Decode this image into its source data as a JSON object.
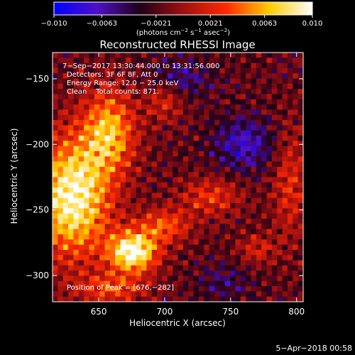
{
  "chart_data": {
    "type": "heatmap",
    "title": "Reconstructed RHESSI Image",
    "xlabel": "Heliocentric X (arcsec)",
    "ylabel": "Heliocentric Y (arcsec)",
    "xlim": [
      615,
      805
    ],
    "ylim": [
      -320,
      -130
    ],
    "x_ticks": [
      650,
      700,
      750,
      800
    ],
    "x_tick_labels": [
      "650",
      "700",
      "750",
      "800"
    ],
    "y_ticks": [
      -150,
      -200,
      -250,
      -300
    ],
    "y_tick_labels": [
      "−150",
      "−200",
      "−250",
      "−300"
    ],
    "colorbar": {
      "min": -0.01,
      "max": 0.01,
      "ticks": [
        -0.01,
        -0.0063,
        -0.0021,
        0.0021,
        0.0063,
        0.01
      ],
      "tick_labels": [
        "−0.010",
        "−0.0063",
        "−0.0021",
        "0.0021",
        "0.0063",
        "0.010"
      ],
      "unit_label_parts": [
        "(photons cm",
        "−2",
        " s",
        "−1",
        " asec",
        "−2",
        ")"
      ],
      "colors": [
        "#0000ff",
        "#5010c8",
        "#200018",
        "#a01010",
        "#ff2a00",
        "#ffcc00",
        "#ffffff"
      ]
    },
    "annotations": [
      "7−Sep−2017 13:30:44.000 to 13:31:56.000",
      "Detectors: 3F 6F 8F, Att 0",
      "Energy Range: 12.0 − 25.0 keV",
      "Clean    Total counts: 871."
    ],
    "peak_label": "Position of Peak = [676,−282]",
    "peak": [
      676,
      -282
    ],
    "sources": [
      {
        "x": 630,
        "y": -240,
        "amp": 0.0115,
        "sx": 20,
        "sy": 32
      },
      {
        "x": 658,
        "y": -190,
        "amp": 0.008,
        "sx": 14,
        "sy": 22
      },
      {
        "x": 676,
        "y": -282,
        "amp": 0.012,
        "sx": 13,
        "sy": 11
      },
      {
        "x": 700,
        "y": -262,
        "amp": 0.0055,
        "sx": 14,
        "sy": 9
      },
      {
        "x": 700,
        "y": -165,
        "amp": 0.004,
        "sx": 10,
        "sy": 12
      },
      {
        "x": 735,
        "y": -240,
        "amp": 0.0045,
        "sx": 16,
        "sy": 10
      },
      {
        "x": 795,
        "y": -230,
        "amp": 0.004,
        "sx": 9,
        "sy": 30
      },
      {
        "x": 660,
        "y": -310,
        "amp": 0.005,
        "sx": 18,
        "sy": 8
      },
      {
        "x": 770,
        "y": -280,
        "amp": 0.0035,
        "sx": 10,
        "sy": 8
      },
      {
        "x": 760,
        "y": -200,
        "amp": -0.005,
        "sx": 16,
        "sy": 14
      },
      {
        "x": 710,
        "y": -150,
        "amp": -0.004,
        "sx": 16,
        "sy": 10
      },
      {
        "x": 745,
        "y": -305,
        "amp": -0.0025,
        "sx": 14,
        "sy": 10
      }
    ]
  },
  "footer": {
    "date_stamp": "5−Apr−2018 00:58"
  }
}
